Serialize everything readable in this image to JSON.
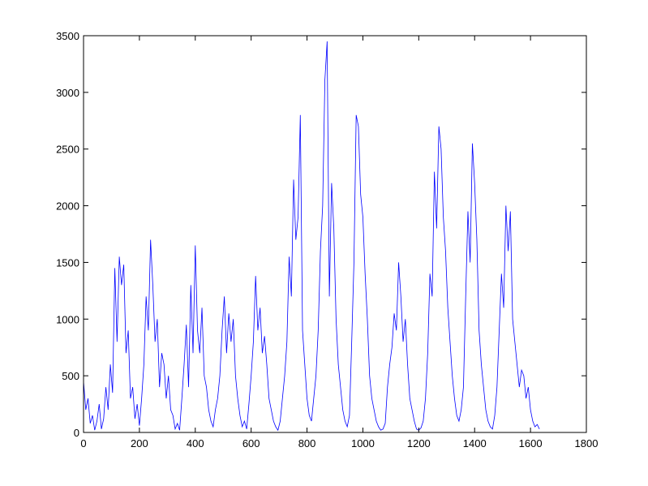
{
  "chart_data": {
    "type": "line",
    "color": "#0000ff",
    "x": [
      0,
      8,
      16,
      24,
      32,
      40,
      48,
      56,
      64,
      72,
      80,
      88,
      96,
      104,
      112,
      120,
      128,
      136,
      144,
      152,
      160,
      168,
      176,
      184,
      192,
      200,
      208,
      216,
      224,
      232,
      240,
      248,
      256,
      264,
      272,
      280,
      288,
      296,
      304,
      312,
      320,
      328,
      336,
      344,
      352,
      360,
      368,
      376,
      384,
      392,
      400,
      408,
      416,
      424,
      432,
      440,
      448,
      456,
      464,
      472,
      480,
      488,
      496,
      504,
      512,
      520,
      528,
      536,
      544,
      552,
      560,
      568,
      576,
      584,
      592,
      600,
      608,
      616,
      624,
      632,
      640,
      648,
      656,
      664,
      672,
      680,
      688,
      696,
      704,
      712,
      720,
      728,
      736,
      744,
      752,
      760,
      768,
      776,
      784,
      792,
      800,
      808,
      816,
      824,
      832,
      840,
      848,
      856,
      864,
      872,
      880,
      888,
      896,
      904,
      912,
      920,
      928,
      936,
      944,
      952,
      960,
      968,
      976,
      984,
      992,
      1000,
      1008,
      1016,
      1024,
      1032,
      1040,
      1048,
      1056,
      1064,
      1072,
      1080,
      1088,
      1096,
      1104,
      1112,
      1120,
      1128,
      1136,
      1144,
      1152,
      1160,
      1168,
      1176,
      1184,
      1192,
      1200,
      1208,
      1216,
      1224,
      1232,
      1240,
      1248,
      1256,
      1264,
      1272,
      1280,
      1288,
      1296,
      1304,
      1312,
      1320,
      1328,
      1336,
      1344,
      1352,
      1360,
      1368,
      1376,
      1384,
      1392,
      1400,
      1408,
      1416,
      1424,
      1432,
      1440,
      1448,
      1456,
      1464,
      1472,
      1480,
      1488,
      1496,
      1504,
      1512,
      1520,
      1528,
      1536,
      1544,
      1552,
      1560,
      1568,
      1576,
      1584,
      1592,
      1600,
      1608,
      1616,
      1624,
      1632
    ],
    "values": [
      450,
      200,
      300,
      80,
      150,
      20,
      100,
      250,
      30,
      120,
      400,
      200,
      600,
      350,
      1450,
      800,
      1550,
      1300,
      1480,
      700,
      900,
      300,
      400,
      120,
      250,
      60,
      300,
      600,
      1200,
      900,
      1700,
      1300,
      800,
      1000,
      400,
      700,
      600,
      300,
      500,
      200,
      150,
      30,
      80,
      20,
      300,
      600,
      950,
      400,
      1300,
      700,
      1650,
      900,
      700,
      1100,
      500,
      400,
      200,
      100,
      50,
      200,
      300,
      500,
      900,
      1200,
      700,
      1050,
      800,
      1000,
      500,
      300,
      150,
      50,
      100,
      30,
      250,
      500,
      800,
      1380,
      900,
      1100,
      700,
      850,
      600,
      300,
      200,
      100,
      50,
      20,
      100,
      300,
      500,
      800,
      1550,
      1200,
      2230,
      1700,
      1900,
      2800,
      900,
      600,
      300,
      150,
      100,
      300,
      500,
      900,
      1600,
      2000,
      3110,
      3450,
      1200,
      2200,
      1800,
      1000,
      600,
      400,
      200,
      100,
      50,
      150,
      800,
      1500,
      2800,
      2700,
      2100,
      1900,
      1400,
      1000,
      500,
      300,
      200,
      100,
      50,
      20,
      30,
      80,
      400,
      600,
      750,
      1050,
      900,
      1500,
      1200,
      800,
      1000,
      600,
      300,
      200,
      100,
      30,
      20,
      40,
      100,
      300,
      700,
      1400,
      1200,
      2300,
      1800,
      2700,
      2500,
      1900,
      1600,
      1100,
      800,
      500,
      300,
      150,
      100,
      200,
      400,
      1200,
      1950,
      1500,
      2550,
      2200,
      1700,
      900,
      600,
      400,
      200,
      100,
      50,
      30,
      150,
      400,
      900,
      1400,
      1100,
      2000,
      1600,
      1950,
      1000,
      800,
      600,
      400,
      550,
      500,
      300,
      400,
      200,
      100,
      50,
      70,
      30
    ],
    "xlim": [
      0,
      1800
    ],
    "xticks": [
      0,
      200,
      400,
      600,
      800,
      1000,
      1200,
      1400,
      1600,
      1800
    ],
    "ylim": [
      0,
      3500
    ],
    "yticks": [
      0,
      500,
      1000,
      1500,
      2000,
      2500,
      3000,
      3500
    ]
  }
}
